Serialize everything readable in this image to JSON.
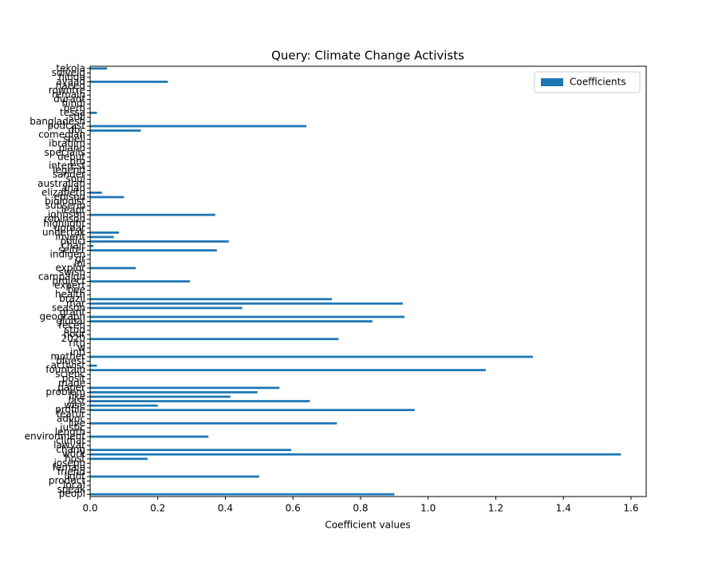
{
  "chart_data": {
    "type": "barh",
    "title": "Query: Climate Change Activists",
    "xlabel": "Coefficient values",
    "categories": [
      "tekola",
      "solveig",
      "hindu",
      "ayaad",
      "naeed",
      "rowntre",
      "remain",
      "durant",
      "hindi",
      "bern",
      "tessa",
      "still",
      "bangladesh",
      "podcast",
      "doc",
      "comedian",
      "shell",
      "ibrahim",
      "plann",
      "specialis",
      "debut",
      "pro",
      "interest",
      "legend",
      "sander",
      "soul",
      "australian",
      "anan",
      "elizabeth",
      "episod",
      "biologist",
      "subscrib",
      "leapt",
      "johnson",
      "robinson",
      "highlight",
      "uproar",
      "undertak",
      "invent",
      "polici",
      "chair",
      "seiter",
      "indigen",
      "gr",
      "lol",
      "explor",
      "swish",
      "campaign",
      "project",
      "expert",
      "bee",
      "health",
      "brazil",
      "mar",
      "season",
      "grant",
      "geograph",
      "global",
      "recen",
      "stud",
      "hour",
      "2020",
      "ritu",
      "w",
      "intl",
      "mother",
      "bluest",
      "activist",
      "fountain",
      "scienc",
      "posit",
      "made",
      "paper",
      "problem",
      "like",
      "last",
      "wise",
      "profile",
      "featur",
      "advoc",
      "live",
      "justic",
      "length",
      "environment",
      "climat",
      "lawyar",
      "chang",
      "work",
      "host",
      "joseph",
      "female",
      "friend",
      "light",
      "product",
      "local",
      "speak",
      "peopl"
    ],
    "series": [
      {
        "name": "Coefficients",
        "color": "#1f77b4",
        "values": [
          0.05,
          0,
          0,
          0.23,
          0,
          0,
          0,
          0,
          0,
          0,
          0.02,
          0,
          0,
          0.64,
          0.15,
          0,
          0,
          0,
          0,
          0,
          0,
          0,
          0,
          0,
          0,
          0,
          0,
          0,
          0.035,
          0.1,
          0,
          0,
          0,
          0.37,
          0,
          0,
          0,
          0.085,
          0.07,
          0.41,
          0.01,
          0.375,
          0,
          0,
          0,
          0.135,
          0,
          0,
          0.295,
          0,
          0,
          0,
          0.715,
          0.925,
          0.45,
          0,
          0.93,
          0.835,
          0,
          0,
          0,
          0.735,
          0,
          0,
          0,
          1.31,
          0,
          0.02,
          1.17,
          0,
          0,
          0,
          0.56,
          0.495,
          0.415,
          0.65,
          0.2,
          0.96,
          0,
          0,
          0.73,
          0,
          0,
          0.35,
          0,
          0,
          0.595,
          1.57,
          0.17,
          0,
          0,
          0,
          0.5,
          0,
          0,
          0,
          0.9
        ]
      }
    ],
    "xlim": [
      0,
      1.645
    ],
    "xticks": [
      {
        "value": 0,
        "label": "0.0"
      },
      0.2,
      0.4,
      0.6,
      0.8,
      {
        "value": 1,
        "label": "1.0"
      },
      1.2,
      1.4,
      1.6
    ],
    "legend": "upper right"
  }
}
